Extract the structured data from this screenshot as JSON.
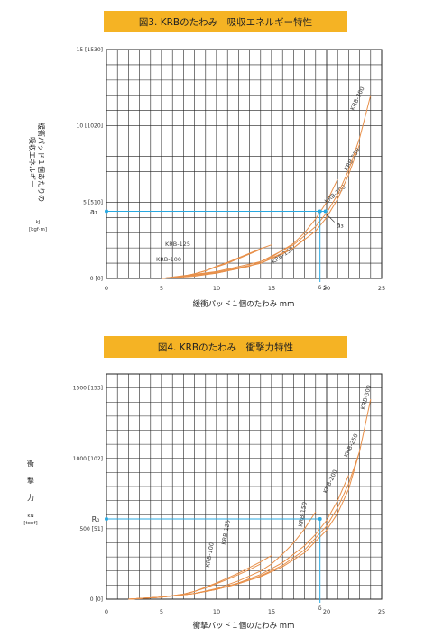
{
  "chart_data": [
    {
      "type": "line",
      "title": "図3. KRBのたわみ　吸収エネルギー特性",
      "xlabel": "緩衝パッド１個のたわみ mm",
      "ylabel_lines": [
        "緩衝パッド１個あたりの",
        "吸収エネルギー"
      ],
      "yunit_lines": [
        "kJ",
        "[kgf·m]"
      ],
      "xlim": [
        0,
        25
      ],
      "ylim": [
        0,
        15
      ],
      "xticks": [
        "0",
        "5",
        "10",
        "15",
        "20",
        "25"
      ],
      "yticks": [
        {
          "value": 0,
          "label": "0 [0]"
        },
        {
          "value": 5,
          "label": "5 [510]"
        },
        {
          "value": 10,
          "label": "10 [1020]"
        },
        {
          "value": 15,
          "label": "15 [1530]"
        }
      ],
      "grid": true,
      "series": [
        {
          "name": "KRB-100",
          "x": [
            5,
            7,
            8,
            9,
            10,
            11,
            12,
            13,
            14
          ],
          "y": [
            0,
            0.15,
            0.3,
            0.5,
            0.75,
            1.0,
            1.3,
            1.6,
            1.9
          ]
        },
        {
          "name": "KRB-125",
          "x": [
            5,
            7,
            8,
            9,
            10,
            11,
            12,
            13,
            14,
            15
          ],
          "y": [
            0,
            0.15,
            0.3,
            0.5,
            0.8,
            1.05,
            1.35,
            1.65,
            1.95,
            2.2
          ]
        },
        {
          "name": "KRB-150",
          "x": [
            5,
            8,
            10,
            12,
            14,
            15,
            16,
            17,
            18
          ],
          "y": [
            0,
            0.15,
            0.35,
            0.65,
            1.0,
            1.3,
            1.6,
            2.0,
            2.6
          ]
        },
        {
          "name": "KRB-200",
          "x": [
            5,
            10,
            13,
            15,
            17,
            18,
            19,
            20,
            21
          ],
          "y": [
            0,
            0.35,
            0.8,
            1.4,
            2.3,
            3.0,
            3.9,
            5.0,
            6.5
          ]
        },
        {
          "name": "KRB-250",
          "x": [
            5,
            10,
            14,
            17,
            19,
            20,
            21,
            22,
            23
          ],
          "y": [
            0,
            0.4,
            1.0,
            2.0,
            3.1,
            4.0,
            5.2,
            6.8,
            8.8
          ]
        },
        {
          "name": "KRB-300",
          "x": [
            5,
            10,
            14,
            17,
            19,
            20,
            21,
            22,
            23,
            24
          ],
          "y": [
            0,
            0.45,
            1.1,
            2.2,
            3.4,
            4.3,
            5.5,
            7.1,
            9.2,
            12.0
          ]
        }
      ],
      "annotations": {
        "a1": {
          "label": "a₁",
          "y": 4.4
        },
        "s": {
          "label": "δ S₁",
          "x": 19.4
        },
        "a3": {
          "label": "a₃"
        }
      }
    },
    {
      "type": "line",
      "title": "図4. KRBのたわみ　衝撃力特性",
      "xlabel": "衝撃パッド１個のたわみ mm",
      "ylabel_lines": [
        "衝",
        "撃",
        "力"
      ],
      "yunit_lines": [
        "kN",
        "[tonf]"
      ],
      "xlim": [
        0,
        25
      ],
      "ylim": [
        0,
        1600
      ],
      "xticks": [
        "0",
        "5",
        "10",
        "15",
        "20",
        "25"
      ],
      "yticks": [
        {
          "value": 0,
          "label": "0 [0]"
        },
        {
          "value": 500,
          "label": "500 [51]"
        },
        {
          "value": 1000,
          "label": "1000 [102]"
        },
        {
          "value": 1500,
          "label": "1500 [153]"
        }
      ],
      "grid": true,
      "series": [
        {
          "name": "KRB-100",
          "x": [
            2,
            5,
            7,
            8,
            9,
            10,
            11,
            12,
            13,
            14
          ],
          "y": [
            0,
            15,
            35,
            55,
            80,
            110,
            140,
            175,
            210,
            250
          ]
        },
        {
          "name": "KRB-125",
          "x": [
            2,
            5,
            7,
            8,
            9,
            10,
            11,
            12,
            13,
            14,
            15
          ],
          "y": [
            0,
            15,
            35,
            55,
            85,
            115,
            150,
            185,
            225,
            265,
            310
          ]
        },
        {
          "name": "KRB-150",
          "x": [
            2,
            5,
            8,
            10,
            12,
            14,
            15,
            16,
            17,
            18,
            19
          ],
          "y": [
            0,
            15,
            40,
            75,
            130,
            200,
            250,
            320,
            400,
            500,
            620
          ]
        },
        {
          "name": "KRB-200",
          "x": [
            2,
            5,
            8,
            10,
            12,
            14,
            16,
            18,
            19,
            20,
            21,
            22
          ],
          "y": [
            0,
            15,
            40,
            70,
            115,
            175,
            260,
            380,
            460,
            560,
            700,
            880
          ]
        },
        {
          "name": "KRB-250",
          "x": [
            2,
            5,
            8,
            10,
            12,
            14,
            16,
            18,
            20,
            21,
            22,
            23
          ],
          "y": [
            0,
            15,
            40,
            70,
            110,
            165,
            240,
            350,
            520,
            650,
            820,
            1050
          ]
        },
        {
          "name": "KRB-300",
          "x": [
            2,
            5,
            8,
            10,
            12,
            14,
            16,
            18,
            20,
            21,
            22,
            23,
            24
          ],
          "y": [
            0,
            15,
            40,
            70,
            110,
            160,
            230,
            330,
            490,
            610,
            780,
            1050,
            1420
          ]
        }
      ],
      "annotations": {
        "r": {
          "label": "R₀",
          "y": 570
        },
        "s": {
          "label": "δ",
          "x": 19.4
        }
      }
    }
  ],
  "colors": {
    "title_bar": "#f5b324",
    "curve": "#e8904a",
    "guide": "#29a8e0",
    "grid": "#222222"
  }
}
